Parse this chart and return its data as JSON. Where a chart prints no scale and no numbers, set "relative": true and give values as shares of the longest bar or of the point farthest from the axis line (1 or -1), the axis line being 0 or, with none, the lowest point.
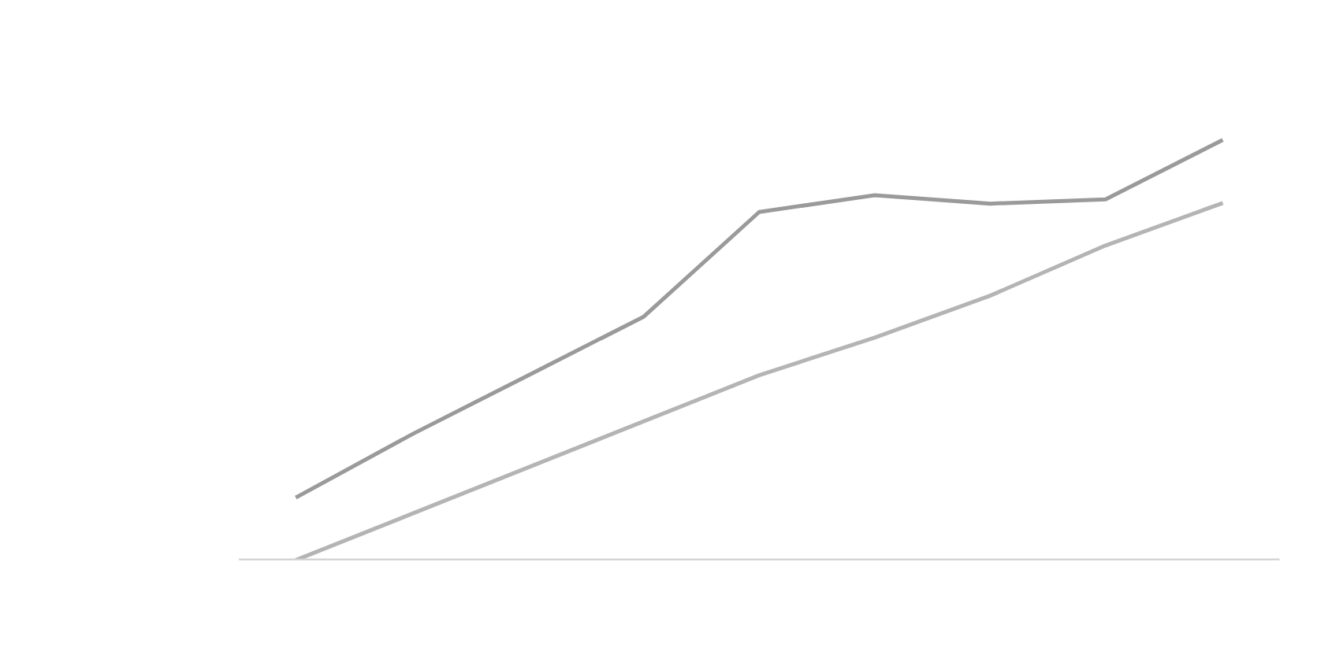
{
  "chart_data": {
    "type": "line",
    "relative": true,
    "categories": [
      null,
      null,
      null,
      null,
      null,
      null,
      null,
      null,
      null
    ],
    "series": [
      {
        "color": "#9a9a9a",
        "values": [
          0.15,
          0.3,
          0.44,
          0.58,
          0.83,
          0.87,
          0.85,
          0.86,
          1
        ]
      },
      {
        "color": "#b4b4b4",
        "values": [
          0,
          0.11,
          0.22,
          0.33,
          0.44,
          0.53,
          0.63,
          0.75,
          0.85
        ]
      }
    ],
    "marker": "none",
    "line_style": "solid"
  }
}
